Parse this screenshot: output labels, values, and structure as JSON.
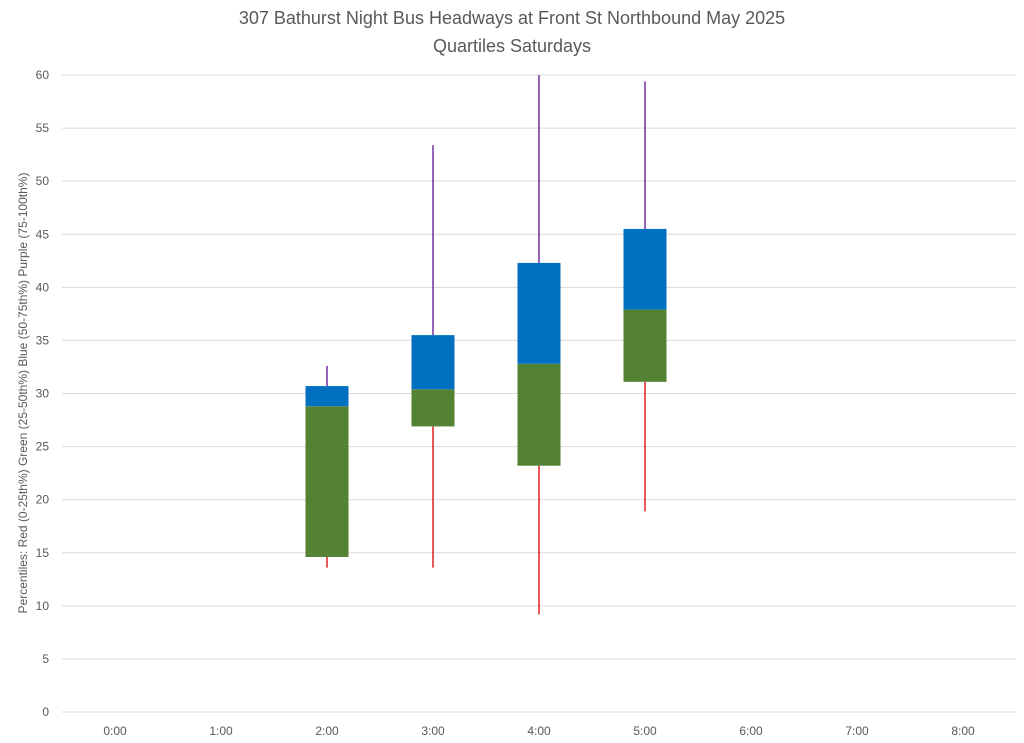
{
  "chart_data": {
    "type": "bar",
    "title": "307 Bathurst Night Bus Headways at Front St Northbound May 2025",
    "subtitle": "Quartiles Saturdays",
    "xlabel": "",
    "ylabel": "Percentiles:  Red (0-25th%)  Green (25-50th%)  Blue (50-75th%)  Purple (75-100th%)",
    "ylim": [
      0,
      60
    ],
    "yticks": [
      0,
      5,
      10,
      15,
      20,
      25,
      30,
      35,
      40,
      45,
      50,
      55,
      60
    ],
    "categories": [
      "0:00",
      "1:00",
      "2:00",
      "3:00",
      "4:00",
      "5:00",
      "6:00",
      "7:00",
      "8:00"
    ],
    "grid": true,
    "legend": "none",
    "colors": {
      "min_to_q1": "#e02020",
      "q1_to_median": "#548235",
      "median_to_q3": "#0070c0",
      "q3_to_max": "#7030a0",
      "grid": "#d9d9d9",
      "text": "#595959"
    },
    "series": [
      {
        "key": "min",
        "values": [
          null,
          null,
          13.6,
          13.6,
          9.2,
          18.9,
          null,
          null,
          null
        ]
      },
      {
        "key": "q1",
        "values": [
          null,
          null,
          14.6,
          26.9,
          23.2,
          31.1,
          null,
          null,
          null
        ]
      },
      {
        "key": "median",
        "values": [
          null,
          null,
          28.8,
          30.4,
          32.8,
          37.9,
          null,
          null,
          null
        ]
      },
      {
        "key": "q3",
        "values": [
          null,
          null,
          30.7,
          35.5,
          42.3,
          45.5,
          null,
          null,
          null
        ]
      },
      {
        "key": "max",
        "values": [
          null,
          null,
          32.6,
          53.4,
          60.0,
          59.4,
          null,
          null,
          null
        ]
      }
    ]
  }
}
